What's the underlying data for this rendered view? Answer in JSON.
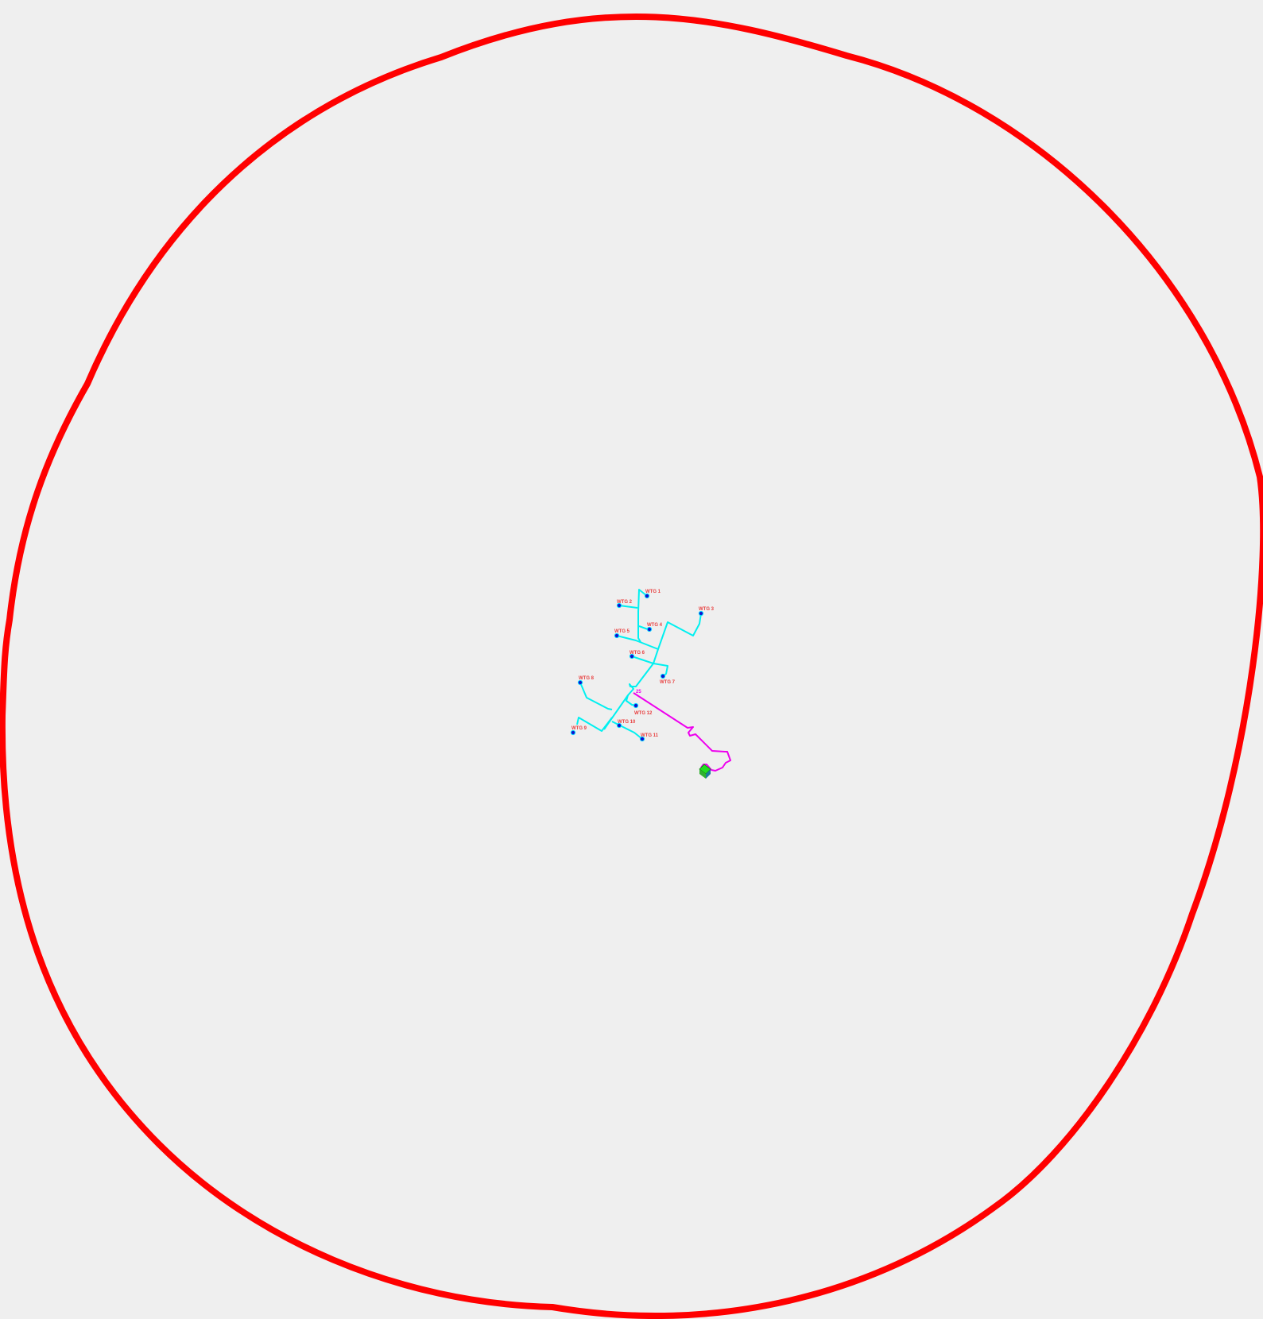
{
  "map": {
    "colors": {
      "background": "#efefef",
      "boundary": "#ff0000",
      "internal_cable": "#00f0f0",
      "export_cable": "#ee00ee",
      "turbine_fill": "#1010d0",
      "turbine_stroke": "#00d8ff",
      "label": "#e84040",
      "substation_top": "#22dd22",
      "substation_side": "#1a7a9a",
      "junction_label": "#ee00ee"
    },
    "turbines": [
      {
        "id": "wtg-1",
        "label": "WTG 1"
      },
      {
        "id": "wtg-2",
        "label": "WTG 2"
      },
      {
        "id": "wtg-3",
        "label": "WTG 3"
      },
      {
        "id": "wtg-4",
        "label": "WTG 4"
      },
      {
        "id": "wtg-5",
        "label": "WTG 5"
      },
      {
        "id": "wtg-6",
        "label": "WTG 6"
      },
      {
        "id": "wtg-7",
        "label": "WTG 7"
      },
      {
        "id": "wtg-8",
        "label": "WTG 8"
      },
      {
        "id": "wtg-9",
        "label": "WTG 9"
      },
      {
        "id": "wtg-10",
        "label": "WTG 10"
      },
      {
        "id": "wtg-11",
        "label": "WTG 11"
      },
      {
        "id": "wtg-12",
        "label": "WTG 12"
      }
    ],
    "junction": {
      "label": "25"
    }
  }
}
